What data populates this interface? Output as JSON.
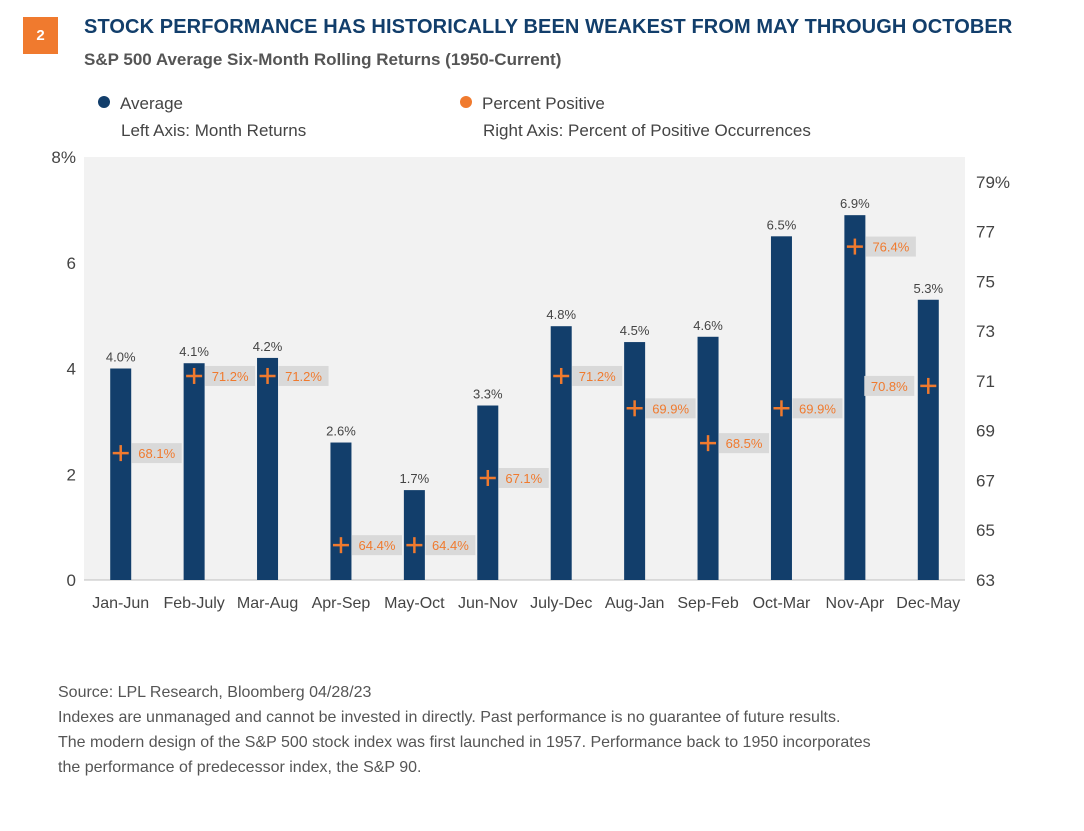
{
  "header": {
    "badge": "2",
    "title": "STOCK PERFORMANCE HAS HISTORICALLY BEEN WEAKEST FROM MAY THROUGH OCTOBER",
    "subtitle": "S&P 500 Average Six-Month Rolling Returns (1950-Current)"
  },
  "legend": {
    "average_label": "Average",
    "average_axis": "Left Axis: Month Returns",
    "positive_label": "Percent Positive",
    "positive_axis": "Right Axis: Percent of Positive Occurrences"
  },
  "colors": {
    "bar": "#123E6B",
    "marker": "#F07A2E",
    "label_box": "#D9D9D9",
    "plot_bg": "#F2F2F2",
    "title": "#123E6B",
    "badge": "#F07A2E"
  },
  "chart_data": {
    "type": "bar",
    "title": "STOCK PERFORMANCE HAS HISTORICALLY BEEN WEAKEST FROM MAY THROUGH OCTOBER",
    "subtitle": "S&P 500 Average Six-Month Rolling Returns (1950-Current)",
    "categories": [
      "Jan-Jun",
      "Feb-July",
      "Mar-Aug",
      "Apr-Sep",
      "May-Oct",
      "Jun-Nov",
      "July-Dec",
      "Aug-Jan",
      "Sep-Feb",
      "Oct-Mar",
      "Nov-Apr",
      "Dec-May"
    ],
    "series": [
      {
        "name": "Average",
        "axis": "left",
        "type": "bar",
        "values": [
          4.0,
          4.1,
          4.2,
          2.6,
          1.7,
          3.3,
          4.8,
          4.5,
          4.6,
          6.5,
          6.9,
          5.3
        ],
        "labels": [
          "4.0%",
          "4.1%",
          "4.2%",
          "2.6%",
          "1.7%",
          "3.3%",
          "4.8%",
          "4.5%",
          "4.6%",
          "6.5%",
          "6.9%",
          "5.3%"
        ]
      },
      {
        "name": "Percent Positive",
        "axis": "right",
        "type": "scatter",
        "values": [
          68.1,
          71.2,
          71.2,
          64.4,
          64.4,
          67.1,
          71.2,
          69.9,
          68.5,
          69.9,
          76.4,
          70.8
        ],
        "labels": [
          "68.1%",
          "71.2%",
          "71.2%",
          "64.4%",
          "64.4%",
          "67.1%",
          "71.2%",
          "69.9%",
          "68.5%",
          "69.9%",
          "76.4%",
          "70.8%"
        ],
        "label_side": [
          "right",
          "right",
          "right",
          "right",
          "right",
          "right",
          "right",
          "right",
          "right",
          "right",
          "right",
          "left"
        ]
      }
    ],
    "left_axis": {
      "ylim": [
        0,
        8
      ],
      "ticks": [
        0,
        2,
        4,
        6,
        8
      ],
      "tick_labels": [
        "0",
        "2",
        "4",
        "6",
        "8%"
      ],
      "label": "Left Axis: Month Returns"
    },
    "right_axis": {
      "ylim": [
        63,
        80
      ],
      "ticks": [
        63,
        65,
        67,
        69,
        71,
        73,
        75,
        77,
        79
      ],
      "tick_labels": [
        "63",
        "65",
        "67",
        "69",
        "71",
        "73",
        "75",
        "77",
        "79%"
      ],
      "label": "Right Axis: Percent of Positive Occurrences"
    },
    "grid": false,
    "legend_position": "top-left"
  },
  "footer": {
    "source": "Source: LPL Research, Bloomberg  04/28/23",
    "disclaimer": "Indexes are unmanaged and cannot be invested in directly. Past performance is no guarantee of future results.",
    "note_line1": "The modern design of the S&P 500 stock index was first launched in 1957. Performance back to 1950 incorporates",
    "note_line2": "the performance of predecessor index, the S&P 90."
  }
}
